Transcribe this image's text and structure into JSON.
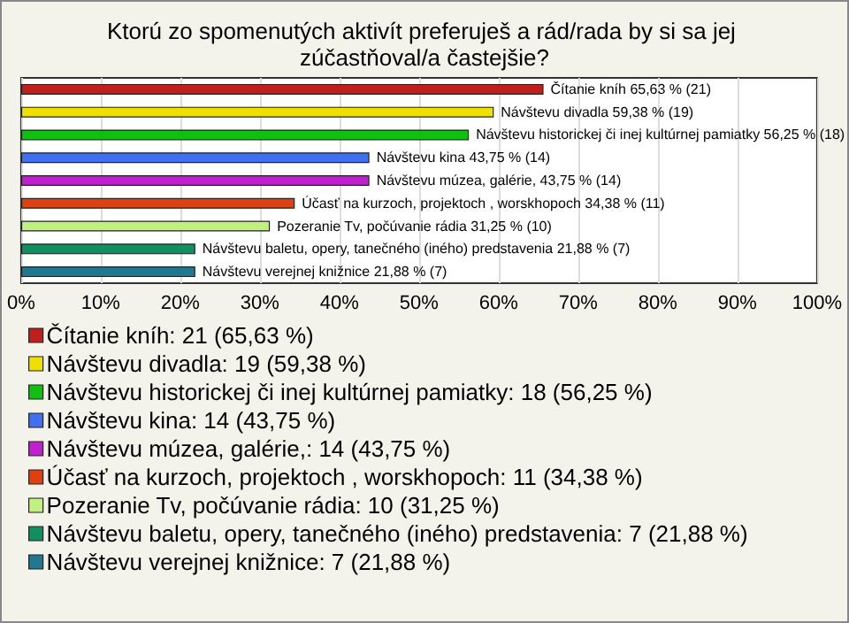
{
  "chart_data": {
    "type": "bar",
    "orientation": "horizontal",
    "stacked": true,
    "title": "Ktorú zo spomenutých aktivít preferuješ a rád/rada by si sa jej zúčastňoval/a častejšie?",
    "categories": [
      null,
      null,
      null,
      null,
      null,
      null,
      null,
      null,
      null
    ],
    "series": [
      {
        "name": "Čítanie kníh: 21 (65,63 %)",
        "color": "#c0201c",
        "values": [
          65.63,
          null,
          null,
          null,
          null,
          null,
          null,
          null,
          null
        ],
        "value_labels": [
          "Čítanie kníh 65,63 % (21)",
          null,
          null,
          null,
          null,
          null,
          null,
          null,
          null
        ]
      },
      {
        "name": "Návštevu divadla: 19 (59,38 %)",
        "color": "#f0e000",
        "values": [
          null,
          59.38,
          null,
          null,
          null,
          null,
          null,
          null,
          null
        ],
        "value_labels": [
          null,
          "Návštevu divadla 59,38 % (19)",
          null,
          null,
          null,
          null,
          null,
          null,
          null
        ]
      },
      {
        "name": "Návštevu historickej či inej kultúrnej pamiatky: 18 (56,25 %)",
        "color": "#10c010",
        "values": [
          null,
          null,
          56.25,
          null,
          null,
          null,
          null,
          null,
          null
        ],
        "value_labels": [
          null,
          null,
          "Návštevu historickej či inej kultúrnej pamiatky 56,25 % (18)",
          null,
          null,
          null,
          null,
          null,
          null
        ]
      },
      {
        "name": "Návštevu kina: 14 (43,75 %)",
        "color": "#4070f0",
        "values": [
          null,
          null,
          null,
          43.75,
          null,
          null,
          null,
          null,
          null
        ],
        "value_labels": [
          null,
          null,
          null,
          "Návštevu kina 43,75 % (14)",
          null,
          null,
          null,
          null,
          null
        ]
      },
      {
        "name": "Návštevu múzea, galérie,: 14 (43,75 %)",
        "color": "#c020d0",
        "values": [
          null,
          null,
          null,
          null,
          43.75,
          null,
          null,
          null,
          null
        ],
        "value_labels": [
          null,
          null,
          null,
          null,
          "Návštevu múzea, galérie, 43,75 % (14)",
          null,
          null,
          null,
          null
        ]
      },
      {
        "name": "Účasť na kurzoch, projektoch , worskhopoch: 11 (34,38 %)",
        "color": "#e04010",
        "values": [
          null,
          null,
          null,
          null,
          null,
          34.38,
          null,
          null,
          null
        ],
        "value_labels": [
          null,
          null,
          null,
          null,
          null,
          "Účasť na kurzoch, projektoch , worskhopoch 34,38 % (11)",
          null,
          null,
          null
        ]
      },
      {
        "name": "Pozeranie Tv, počúvanie rádia: 10 (31,25 %)",
        "color": "#c0f080",
        "values": [
          null,
          null,
          null,
          null,
          null,
          null,
          31.25,
          null,
          null
        ],
        "value_labels": [
          null,
          null,
          null,
          null,
          null,
          null,
          "Pozeranie Tv, počúvanie rádia 31,25 % (10)",
          null,
          null
        ]
      },
      {
        "name": "Návštevu baletu, opery, tanečného (iného) predstavenia: 7 (21,88 %)",
        "color": "#109060",
        "values": [
          null,
          null,
          null,
          null,
          null,
          null,
          null,
          21.88,
          null
        ],
        "value_labels": [
          null,
          null,
          null,
          null,
          null,
          null,
          null,
          "Návštevu baletu, opery, tanečného (iného) predstavenia 21,88 % (7)",
          null
        ]
      },
      {
        "name": "Návštevu verejnej knižnice: 7 (21,88 %)",
        "color": "#207890",
        "values": [
          null,
          null,
          null,
          null,
          null,
          null,
          null,
          null,
          21.88
        ],
        "value_labels": [
          null,
          null,
          null,
          null,
          null,
          null,
          null,
          null,
          "Návštevu verejnej knižnice 21,88 % (7)"
        ]
      }
    ],
    "xlim": [
      0,
      100
    ],
    "xticks": [
      {
        "value": 0,
        "label": "0%"
      },
      {
        "value": 10,
        "label": "10%"
      },
      {
        "value": 20,
        "label": "20%"
      },
      {
        "value": 30,
        "label": "30%"
      },
      {
        "value": 40,
        "label": "40%"
      },
      {
        "value": 50,
        "label": "50%"
      },
      {
        "value": 60,
        "label": "60%"
      },
      {
        "value": 70,
        "label": "70%"
      },
      {
        "value": 80,
        "label": "80%"
      },
      {
        "value": 90,
        "label": "90%"
      },
      {
        "value": 100,
        "label": "100%"
      }
    ],
    "grid": "x",
    "legend": "bottom",
    "tick_labels": "x"
  }
}
